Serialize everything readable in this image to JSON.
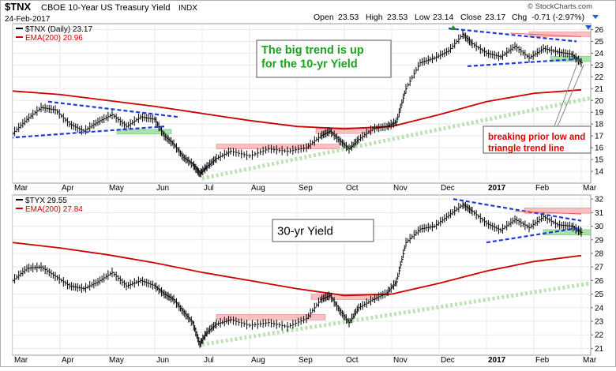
{
  "header": {
    "symbol": "$TNX",
    "description": "CBOE 10-Year US Treasury Yield",
    "exchange": "INDX",
    "date": "24-Feb-2017",
    "open_label": "Open",
    "open": "23.53",
    "high_label": "High",
    "high": "23.53",
    "low_label": "Low",
    "low": "23.14",
    "close_label": "Close",
    "close": "23.17",
    "chg_label": "Chg",
    "chg": "-0.71 (-2.97%)",
    "watermark": "© StockCharts.com"
  },
  "colors": {
    "price": "#000000",
    "ema": "#cc0000",
    "blue_trend": "#1f3ad6",
    "green_dotted": "#bfe0b4",
    "red_zone": "#f7b6b6",
    "green_zone": "#9ddc9d",
    "annotation_green": "#1aa41a",
    "annotation_red": "#e00000",
    "up_triangle": "#2a8a2a",
    "down_triangle": "#2060c0",
    "grid": "#e8e8e8"
  },
  "chart_data": [
    {
      "type": "line",
      "panel": "top",
      "legend": [
        {
          "label": "$TNX (Daily) 23.17",
          "color": "#000000"
        },
        {
          "label": "EMA(200) 20.96",
          "color": "#cc0000"
        }
      ],
      "ylim": [
        13,
        26.5
      ],
      "yticks": [
        14,
        15,
        16,
        17,
        18,
        19,
        20,
        21,
        22,
        23,
        24,
        25,
        26
      ],
      "xlim": [
        0,
        12.2
      ],
      "xticks": [
        {
          "label": "Mar",
          "pos": 0
        },
        {
          "label": "Apr",
          "pos": 1
        },
        {
          "label": "May",
          "pos": 2
        },
        {
          "label": "Jun",
          "pos": 3
        },
        {
          "label": "Jul",
          "pos": 4
        },
        {
          "label": "Aug",
          "pos": 5
        },
        {
          "label": "Sep",
          "pos": 6
        },
        {
          "label": "Oct",
          "pos": 7
        },
        {
          "label": "Nov",
          "pos": 8
        },
        {
          "label": "Dec",
          "pos": 9
        },
        {
          "label": "2017",
          "pos": 10
        },
        {
          "label": "Feb",
          "pos": 11
        },
        {
          "label": "Mar",
          "pos": 12
        }
      ],
      "price": [
        [
          0,
          17.2
        ],
        [
          0.3,
          18.4
        ],
        [
          0.6,
          19.4
        ],
        [
          0.9,
          19.2
        ],
        [
          1.2,
          18.0
        ],
        [
          1.5,
          17.4
        ],
        [
          1.8,
          18.2
        ],
        [
          2.1,
          18.8
        ],
        [
          2.4,
          17.8
        ],
        [
          2.7,
          18.6
        ],
        [
          3.0,
          18.4
        ],
        [
          3.2,
          17.0
        ],
        [
          3.4,
          16.3
        ],
        [
          3.6,
          15.2
        ],
        [
          3.8,
          14.6
        ],
        [
          3.95,
          13.8
        ],
        [
          4.1,
          14.4
        ],
        [
          4.3,
          15.1
        ],
        [
          4.6,
          15.7
        ],
        [
          5.0,
          15.3
        ],
        [
          5.4,
          15.9
        ],
        [
          5.8,
          15.7
        ],
        [
          6.2,
          16.0
        ],
        [
          6.5,
          17.0
        ],
        [
          6.7,
          17.4
        ],
        [
          6.9,
          16.6
        ],
        [
          7.1,
          15.9
        ],
        [
          7.3,
          16.7
        ],
        [
          7.6,
          17.6
        ],
        [
          7.9,
          17.8
        ],
        [
          8.1,
          18.2
        ],
        [
          8.3,
          21.0
        ],
        [
          8.6,
          23.2
        ],
        [
          8.9,
          23.6
        ],
        [
          9.2,
          24.2
        ],
        [
          9.5,
          25.6
        ],
        [
          9.7,
          24.8
        ],
        [
          10.0,
          24.0
        ],
        [
          10.3,
          23.7
        ],
        [
          10.6,
          24.6
        ],
        [
          10.9,
          23.6
        ],
        [
          11.2,
          24.4
        ],
        [
          11.5,
          24.1
        ],
        [
          11.8,
          23.9
        ],
        [
          12.0,
          23.2
        ]
      ],
      "ema": [
        [
          0,
          20.8
        ],
        [
          1,
          20.5
        ],
        [
          2,
          20.0
        ],
        [
          3,
          19.5
        ],
        [
          4,
          18.9
        ],
        [
          5,
          18.3
        ],
        [
          6,
          17.8
        ],
        [
          7,
          17.6
        ],
        [
          8,
          17.8
        ],
        [
          9,
          18.8
        ],
        [
          10,
          19.9
        ],
        [
          11,
          20.6
        ],
        [
          12,
          20.9
        ]
      ],
      "annotations": [
        {
          "text": [
            "The big trend is up",
            "for the 10-yr Yield"
          ],
          "color": "#1aa41a"
        },
        {
          "text": [
            "breaking prior low and",
            "triangle trend line"
          ],
          "color": "#e00000"
        }
      ],
      "trend_lines": [
        {
          "style": "blue-dash",
          "points": [
            [
              -0.2,
              16.8
            ],
            [
              3.2,
              17.8
            ]
          ]
        },
        {
          "style": "blue-dash",
          "points": [
            [
              0.75,
              19.9
            ],
            [
              3.5,
              18.6
            ]
          ]
        },
        {
          "style": "blue-dash",
          "points": [
            [
              9.2,
              26.1
            ],
            [
              11.9,
              25.0
            ]
          ]
        },
        {
          "style": "blue-dash",
          "points": [
            [
              9.6,
              22.9
            ],
            [
              11.9,
              23.5
            ]
          ]
        },
        {
          "style": "green-dotted",
          "points": [
            [
              4.0,
              13.4
            ],
            [
              12.2,
              20.2
            ]
          ]
        },
        {
          "style": "red-line",
          "points": [
            [
              10.5,
              25.7
            ],
            [
              12.0,
              25.4
            ]
          ]
        }
      ],
      "zones": [
        {
          "kind": "red",
          "x": [
            4.3,
            6.9
          ],
          "y": [
            15.9,
            16.3
          ]
        },
        {
          "kind": "red",
          "x": [
            6.4,
            7.6
          ],
          "y": [
            17.2,
            17.7
          ]
        },
        {
          "kind": "red",
          "x": [
            10.9,
            12.2
          ],
          "y": [
            25.4,
            25.8
          ]
        },
        {
          "kind": "green",
          "x": [
            2.2,
            3.35
          ],
          "y": [
            17.15,
            17.55
          ]
        },
        {
          "kind": "green",
          "x": [
            11.35,
            12.2
          ],
          "y": [
            23.3,
            23.75
          ]
        }
      ],
      "markers": [
        {
          "kind": "up",
          "x": 9.3
        },
        {
          "kind": "down",
          "x": 12.15
        }
      ]
    },
    {
      "type": "line",
      "panel": "bottom",
      "legend": [
        {
          "label": "$TYX 29.55",
          "color": "#000000"
        },
        {
          "label": "EMA(200) 27.84",
          "color": "#cc0000"
        }
      ],
      "ylim": [
        20.5,
        32.3
      ],
      "yticks": [
        21,
        22,
        23,
        24,
        25,
        26,
        27,
        28,
        29,
        30,
        31,
        32
      ],
      "xlim": [
        0,
        12.2
      ],
      "xticks": [
        {
          "label": "Mar",
          "pos": 0
        },
        {
          "label": "Apr",
          "pos": 1
        },
        {
          "label": "May",
          "pos": 2
        },
        {
          "label": "Jun",
          "pos": 3
        },
        {
          "label": "Jul",
          "pos": 4
        },
        {
          "label": "Aug",
          "pos": 5
        },
        {
          "label": "Sep",
          "pos": 6
        },
        {
          "label": "Oct",
          "pos": 7
        },
        {
          "label": "Nov",
          "pos": 8
        },
        {
          "label": "Dec",
          "pos": 9
        },
        {
          "label": "2017",
          "pos": 10
        },
        {
          "label": "Feb",
          "pos": 11
        },
        {
          "label": "Mar",
          "pos": 12
        }
      ],
      "price": [
        [
          0,
          26.0
        ],
        [
          0.3,
          26.9
        ],
        [
          0.6,
          27.0
        ],
        [
          0.9,
          26.3
        ],
        [
          1.2,
          25.6
        ],
        [
          1.5,
          25.4
        ],
        [
          1.8,
          25.9
        ],
        [
          2.1,
          26.6
        ],
        [
          2.4,
          25.6
        ],
        [
          2.7,
          26.0
        ],
        [
          3.0,
          25.6
        ],
        [
          3.2,
          25.0
        ],
        [
          3.4,
          24.6
        ],
        [
          3.6,
          23.7
        ],
        [
          3.8,
          22.9
        ],
        [
          3.95,
          21.3
        ],
        [
          4.1,
          22.2
        ],
        [
          4.3,
          22.8
        ],
        [
          4.6,
          23.1
        ],
        [
          5.0,
          22.7
        ],
        [
          5.4,
          22.9
        ],
        [
          5.8,
          22.6
        ],
        [
          6.2,
          23.2
        ],
        [
          6.5,
          24.6
        ],
        [
          6.7,
          24.9
        ],
        [
          6.9,
          23.8
        ],
        [
          7.1,
          22.9
        ],
        [
          7.3,
          24.0
        ],
        [
          7.6,
          24.6
        ],
        [
          7.9,
          25.1
        ],
        [
          8.1,
          25.9
        ],
        [
          8.3,
          28.8
        ],
        [
          8.6,
          29.8
        ],
        [
          8.9,
          30.0
        ],
        [
          9.2,
          30.8
        ],
        [
          9.5,
          31.6
        ],
        [
          9.7,
          31.1
        ],
        [
          10.0,
          30.2
        ],
        [
          10.3,
          29.7
        ],
        [
          10.6,
          30.5
        ],
        [
          10.9,
          29.9
        ],
        [
          11.2,
          30.7
        ],
        [
          11.5,
          30.1
        ],
        [
          11.8,
          30.0
        ],
        [
          12.0,
          29.55
        ]
      ],
      "ema": [
        [
          0,
          28.8
        ],
        [
          1,
          28.4
        ],
        [
          2,
          27.9
        ],
        [
          3,
          27.3
        ],
        [
          4,
          26.6
        ],
        [
          5,
          26.0
        ],
        [
          6,
          25.4
        ],
        [
          7,
          24.9
        ],
        [
          8,
          25.0
        ],
        [
          9,
          25.8
        ],
        [
          10,
          26.7
        ],
        [
          11,
          27.4
        ],
        [
          12,
          27.84
        ]
      ],
      "annotations": [
        {
          "text": [
            "30-yr Yield"
          ],
          "color": "#000000"
        }
      ],
      "trend_lines": [
        {
          "style": "blue-dash",
          "points": [
            [
              9.3,
              32.0
            ],
            [
              12.0,
              30.4
            ]
          ]
        },
        {
          "style": "blue-dash",
          "points": [
            [
              10.0,
              28.8
            ],
            [
              12.0,
              29.9
            ]
          ]
        },
        {
          "style": "green-dotted",
          "points": [
            [
              4.0,
              21.3
            ],
            [
              12.2,
              25.8
            ]
          ]
        },
        {
          "style": "red-line",
          "points": [
            [
              10.6,
              31.1
            ],
            [
              12.0,
              30.9
            ]
          ]
        }
      ],
      "zones": [
        {
          "kind": "red",
          "x": [
            4.3,
            6.6
          ],
          "y": [
            23.1,
            23.5
          ]
        },
        {
          "kind": "red",
          "x": [
            6.3,
            7.7
          ],
          "y": [
            24.6,
            25.0
          ]
        },
        {
          "kind": "red",
          "x": [
            10.8,
            12.2
          ],
          "y": [
            30.95,
            31.35
          ]
        },
        {
          "kind": "green",
          "x": [
            11.2,
            12.2
          ],
          "y": [
            29.35,
            29.75
          ]
        }
      ],
      "markers": []
    }
  ]
}
